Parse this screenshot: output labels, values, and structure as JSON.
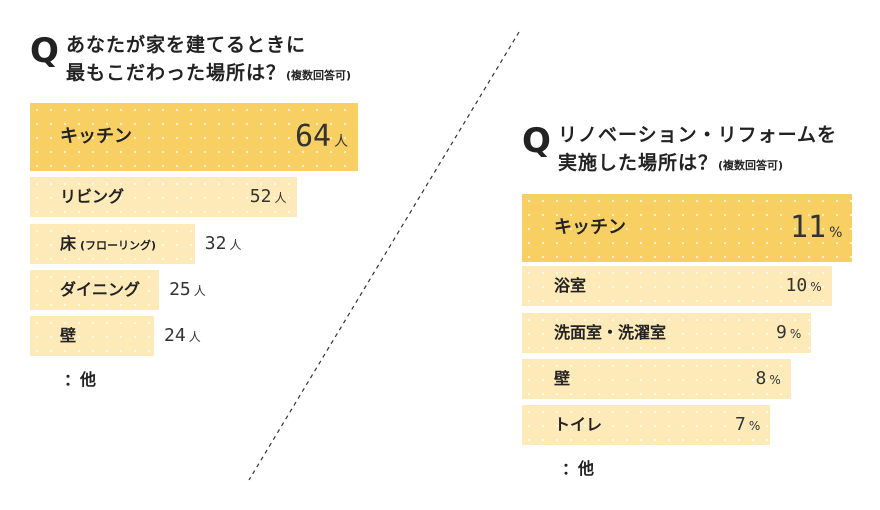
{
  "left": {
    "q_mark": "Q",
    "question_line1": "あなたが家を建てるときに",
    "question_line2": "最もこだわった場所は？",
    "question_note": "(複数回答可)",
    "chart_data": {
      "type": "bar",
      "orientation": "horizontal",
      "unit": "人",
      "categories": [
        "キッチン",
        "リビング",
        "床",
        "ダイニング",
        "壁"
      ],
      "category_notes": [
        "",
        "",
        "(フローリング)",
        "",
        ""
      ],
      "values": [
        64,
        52,
        32,
        25,
        24
      ]
    },
    "other_label": "：他"
  },
  "right": {
    "q_mark": "Q",
    "question_line1": "リノベーション・リフォームを",
    "question_line2": "実施した場所は？",
    "question_note": "(複数回答可)",
    "chart_data": {
      "type": "bar",
      "orientation": "horizontal",
      "unit": "%",
      "categories": [
        "キッチン",
        "浴室",
        "洗面室・洗濯室",
        "壁",
        "トイレ"
      ],
      "values": [
        11,
        10,
        9,
        8,
        7
      ]
    },
    "other_label": "：他"
  },
  "colors": {
    "top_bar": "#f7cf63",
    "bar": "#fdeab8",
    "dot": "#ffffff",
    "text": "#222222",
    "divider": "#333333"
  }
}
